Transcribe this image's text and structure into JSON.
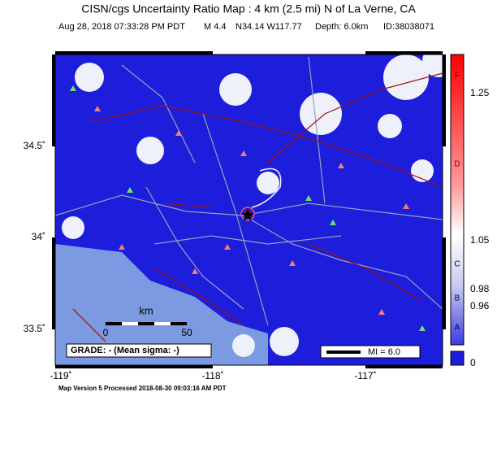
{
  "header": {
    "title": "CISN/cgs Uncertainty Ratio Map : 4 km (2.5 mi) N of La Verne, CA",
    "subtitle": [
      "Aug 28, 2018 07:33:28 PM PDT",
      "M 4.4",
      "N34.14 W117.77",
      "Depth: 6.0km",
      "ID:38038071"
    ]
  },
  "axes": {
    "lat_labels": [
      "34.5˚",
      "34˚",
      "33.5˚"
    ],
    "lon_labels": [
      "-119˚",
      "-118˚",
      "-117˚"
    ]
  },
  "colorbar": {
    "labels": [
      "F",
      "1.25",
      "D",
      "1.05",
      "C",
      "0.98",
      "B",
      "0.96",
      "A",
      "0"
    ]
  },
  "scale_bar": {
    "unit": "km",
    "start": "0",
    "end": "50"
  },
  "grade": "GRADE: - (Mean sigma: -)",
  "legend": "MI = 6.0",
  "footer": "Map Version 5 Processed 2018-08-30 09:03:16 AM PDT"
}
